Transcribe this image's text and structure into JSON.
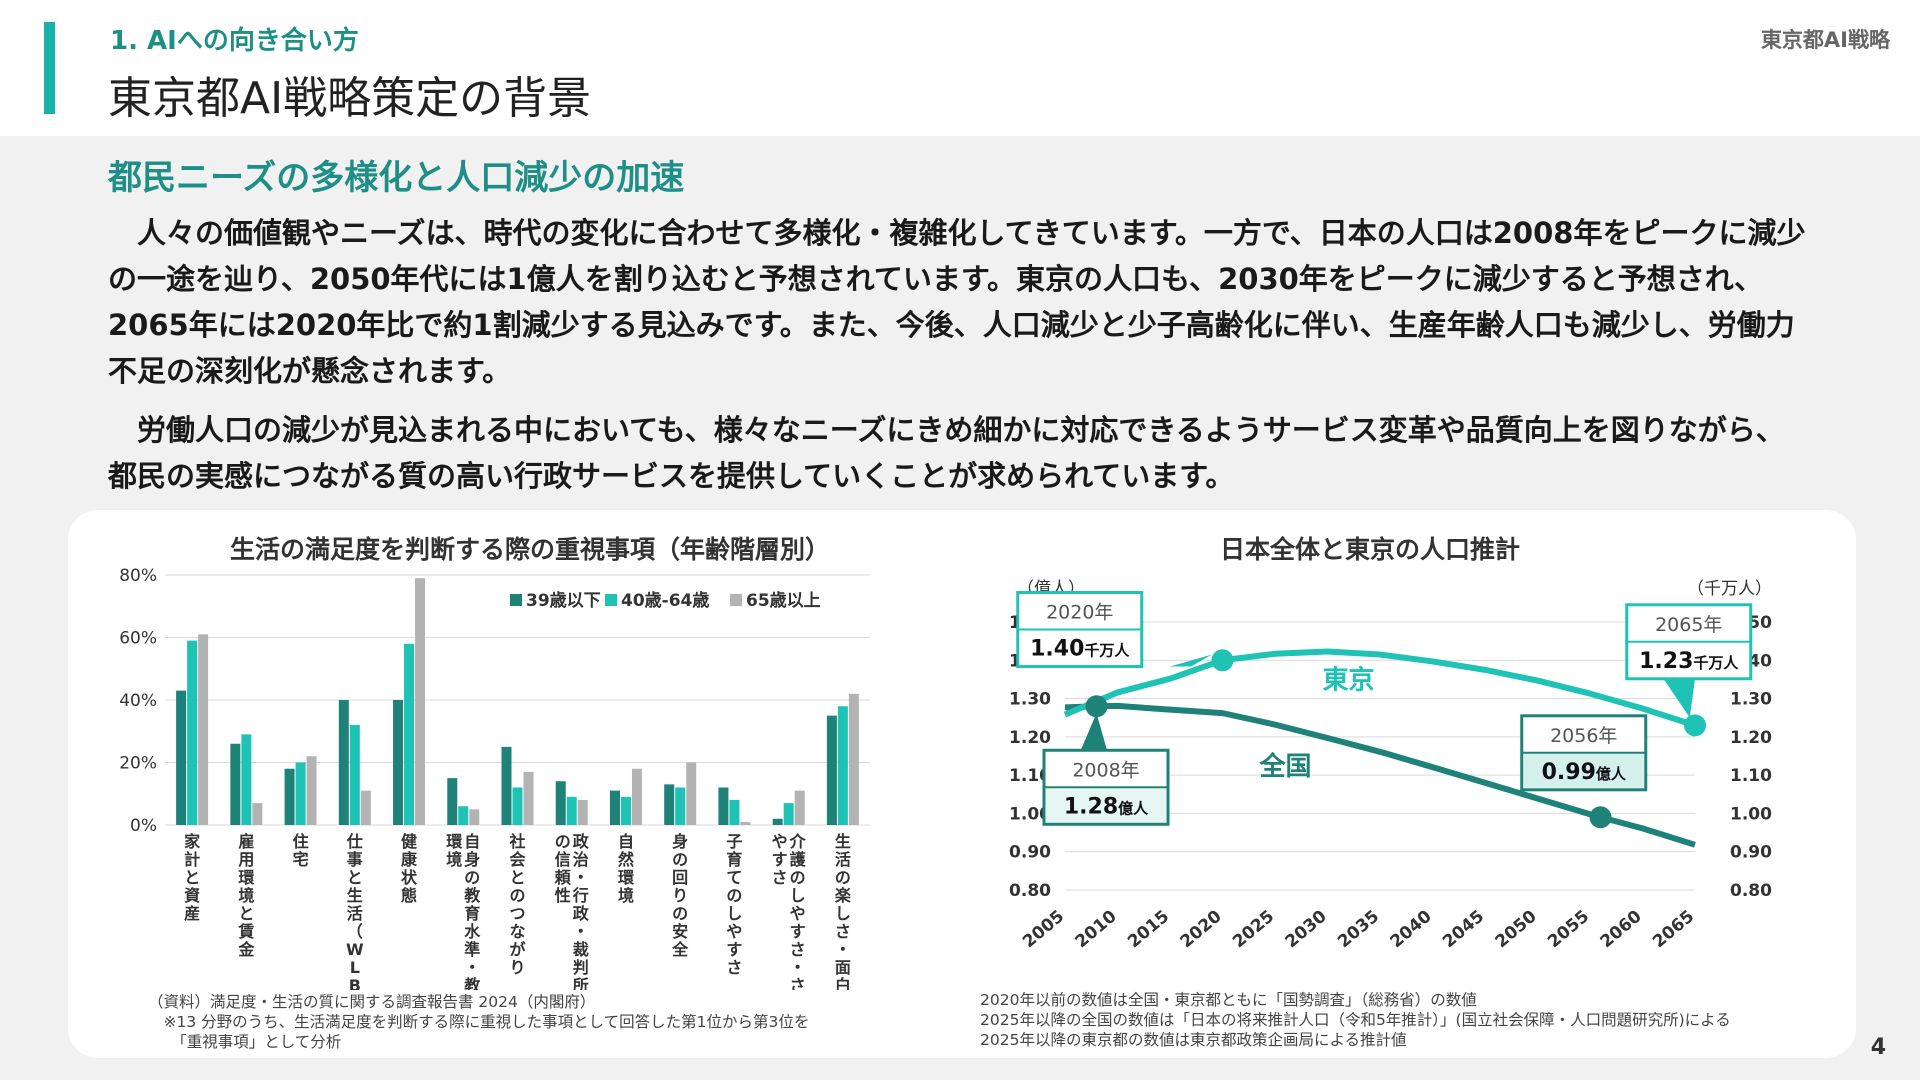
{
  "header": {
    "section_label": "1. AIへの向き合い方",
    "title": "東京都AI戦略策定の背景",
    "doc_name": "東京都AI戦略"
  },
  "main": {
    "subtitle": "都民ニーズの多様化と人口減少の加速",
    "paragraph1": "　人々の価値観やニーズは、時代の変化に合わせて多様化・複雑化してきています。一方で、日本の人口は2008年をピークに減少の一途を辿り、2050年代には1億人を割り込むと予想されています。東京の人口も、2030年をピークに減少すると予想され、2065年には2020年比で約1割減少する見込みです。また、今後、人口減少と少子高齢化に伴い、生産年齢人口も減少し、労働力不足の深刻化が懸念されます。",
    "paragraph2": "　労働人口の減少が見込まれる中においても、様々なニーズにきめ細かに対応できるようサービス変革や品質向上を図りながら、都民の実感につながる質の高い行政サービスを提供していくことが求められています。"
  },
  "colors": {
    "accent": "#17b3a9",
    "dark_teal": "#1e8278",
    "teal": "#1fc3b6",
    "gray": "#b3b3b3",
    "heading": "#1e8f87"
  },
  "chart_data": [
    {
      "type": "bar",
      "title": "生活の満足度を判断する際の重視事項（年齢階層別）",
      "categories": [
        "家計と資産",
        "雇用環境と賃金",
        "住宅",
        "仕事と生活（WLB）",
        "健康状態",
        "自身の教育水準・教育環境",
        "社会とのつながり",
        "政治・行政・裁判所への信頼性",
        "自然環境",
        "身の回りの安全",
        "子育てのしやすさ",
        "介護のしやすさ・されやすさ",
        "生活の楽しさ・面白さ"
      ],
      "series": [
        {
          "name": "39歳以下",
          "color": "#1e8278",
          "values": [
            43,
            26,
            18,
            40,
            40,
            15,
            25,
            14,
            11,
            13,
            12,
            2,
            35
          ]
        },
        {
          "name": "40歳-64歳",
          "color": "#1fc3b6",
          "values": [
            59,
            29,
            20,
            32,
            58,
            6,
            12,
            9,
            9,
            12,
            8,
            7,
            38
          ]
        },
        {
          "name": "65歳以上",
          "color": "#b3b3b3",
          "values": [
            61,
            7,
            22,
            11,
            79,
            5,
            17,
            8,
            18,
            20,
            1,
            11,
            42
          ]
        }
      ],
      "yticks": [
        "0%",
        "20%",
        "40%",
        "60%",
        "80%"
      ],
      "ylim": [
        0,
        80
      ],
      "legend": "top-right",
      "notes": [
        "（資料）満足度・生活の質に関する調査報告書 2024（内閣府）",
        "　※13 分野のうち、生活満足度を判断する際に重視した事項として回答した第1位から第3位を",
        "　　「重視事項」として分析"
      ]
    },
    {
      "type": "line",
      "title": "日本全体と東京の人口推計",
      "x_ticks": [
        "2005",
        "2010",
        "2015",
        "2020",
        "2025",
        "2030",
        "2035",
        "2040",
        "2045",
        "2050",
        "2055",
        "2060",
        "2065"
      ],
      "y_left_label": "（億人）",
      "y_right_label": "（千万人）",
      "y_ticks": [
        "0.80",
        "0.90",
        "1.00",
        "1.10",
        "1.20",
        "1.30",
        "1.40",
        "1.50"
      ],
      "ylim": [
        0.8,
        1.5
      ],
      "series": [
        {
          "name": "全国",
          "color": "#1e8278",
          "x": [
            2005,
            2008,
            2010,
            2015,
            2020,
            2025,
            2030,
            2035,
            2040,
            2045,
            2050,
            2055,
            2056,
            2060,
            2065
          ],
          "y": [
            1.277,
            1.28,
            1.281,
            1.271,
            1.262,
            1.232,
            1.197,
            1.161,
            1.121,
            1.08,
            1.039,
            0.998,
            0.99,
            0.961,
            0.918
          ]
        },
        {
          "name": "東京",
          "color": "#1fc3b6",
          "x": [
            2005,
            2010,
            2015,
            2020,
            2025,
            2030,
            2035,
            2040,
            2045,
            2050,
            2055,
            2060,
            2065
          ],
          "y": [
            1.258,
            1.316,
            1.352,
            1.4,
            1.417,
            1.423,
            1.415,
            1.397,
            1.375,
            1.347,
            1.313,
            1.274,
            1.23
          ]
        }
      ],
      "callouts": [
        {
          "year": "2020年",
          "value": "1.40",
          "unit": "千万人"
        },
        {
          "year": "2065年",
          "value": "1.23",
          "unit": "千万人"
        },
        {
          "year": "2008年",
          "value": "1.28",
          "unit": "億人"
        },
        {
          "year": "2056年",
          "value": "0.99",
          "unit": "億人"
        }
      ],
      "notes": [
        "2020年以前の数値は全国・東京都ともに「国勢調査」（総務省）の数値",
        "2025年以降の全国の数値は「日本の将来推計人口（令和5年推計）」(国立社会保障・人口問題研究所)による",
        "2025年以降の東京都の数値は東京都政策企画局による推計値"
      ]
    }
  ],
  "page_number": "4"
}
